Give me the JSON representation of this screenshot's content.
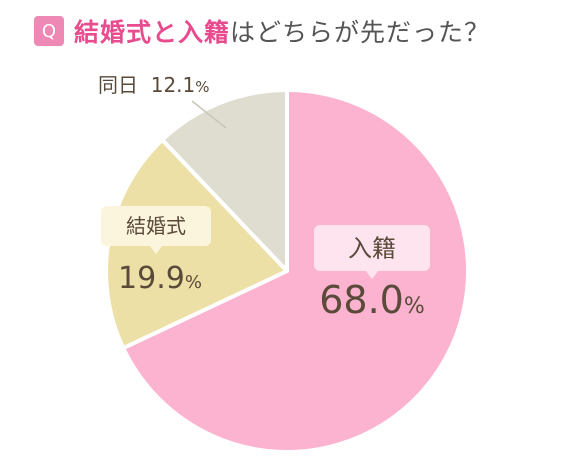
{
  "question": {
    "badge": "Q",
    "title_part1": "結婚式と入籍",
    "title_part2": "はどちらが先だった？"
  },
  "chart_data": {
    "type": "pie",
    "slices": [
      {
        "label": "入籍",
        "value": 68.0,
        "value_text": "68.0",
        "unit": "%",
        "color": "#fbb3cf",
        "label_bg": "#fde4ee"
      },
      {
        "label": "結婚式",
        "value": 19.9,
        "value_text": "19.9",
        "unit": "%",
        "color": "#ede0a6",
        "label_bg": "#fbf5de"
      },
      {
        "label": "同日",
        "value": 12.1,
        "value_text": "12.1",
        "unit": "%",
        "color": "#deddcf",
        "label_bg": null
      }
    ]
  }
}
